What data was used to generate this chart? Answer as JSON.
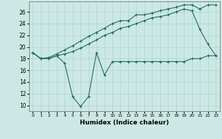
{
  "xlabel": "Humidex (Indice chaleur)",
  "background_color": "#cce8e4",
  "grid_color": "#aad4ce",
  "line_color": "#1a6b5a",
  "xlim": [
    -0.5,
    23.5
  ],
  "ylim": [
    9.0,
    27.8
  ],
  "xticks": [
    0,
    1,
    2,
    3,
    4,
    5,
    6,
    7,
    8,
    9,
    10,
    11,
    12,
    13,
    14,
    15,
    16,
    17,
    18,
    19,
    20,
    21,
    22,
    23
  ],
  "yticks": [
    10,
    12,
    14,
    16,
    18,
    20,
    22,
    24,
    26
  ],
  "line1_x": [
    0,
    1,
    2,
    3,
    4,
    5,
    6,
    7,
    8,
    9,
    10,
    11,
    12,
    13,
    14,
    15,
    16,
    17,
    18,
    19,
    20,
    21,
    22,
    23
  ],
  "line1_y": [
    19.0,
    18.0,
    18.0,
    18.5,
    17.2,
    11.5,
    9.8,
    11.5,
    19.0,
    15.2,
    17.5,
    17.5,
    17.5,
    17.5,
    17.5,
    17.5,
    17.5,
    17.5,
    17.5,
    17.5,
    18.0,
    18.0,
    18.5,
    18.5
  ],
  "line2_x": [
    0,
    1,
    2,
    3,
    4,
    5,
    6,
    7,
    8,
    9,
    10,
    11,
    12,
    13,
    14,
    15,
    16,
    17,
    18,
    19,
    20,
    21,
    22,
    23
  ],
  "line2_y": [
    19.0,
    18.0,
    18.0,
    18.5,
    18.8,
    19.2,
    19.8,
    20.5,
    21.2,
    22.0,
    22.5,
    23.2,
    23.5,
    24.0,
    24.5,
    25.0,
    25.2,
    25.5,
    26.0,
    26.5,
    26.2,
    23.0,
    20.5,
    18.5
  ],
  "line3_x": [
    0,
    1,
    2,
    3,
    4,
    5,
    6,
    7,
    8,
    9,
    10,
    11,
    12,
    13,
    14,
    15,
    16,
    17,
    18,
    19,
    20,
    21,
    22,
    23
  ],
  "line3_y": [
    19.0,
    18.0,
    18.2,
    18.8,
    19.5,
    20.2,
    21.0,
    21.8,
    22.5,
    23.2,
    24.0,
    24.5,
    24.5,
    25.5,
    25.5,
    25.8,
    26.2,
    26.5,
    26.8,
    27.2,
    27.2,
    26.5,
    27.2,
    27.2
  ]
}
